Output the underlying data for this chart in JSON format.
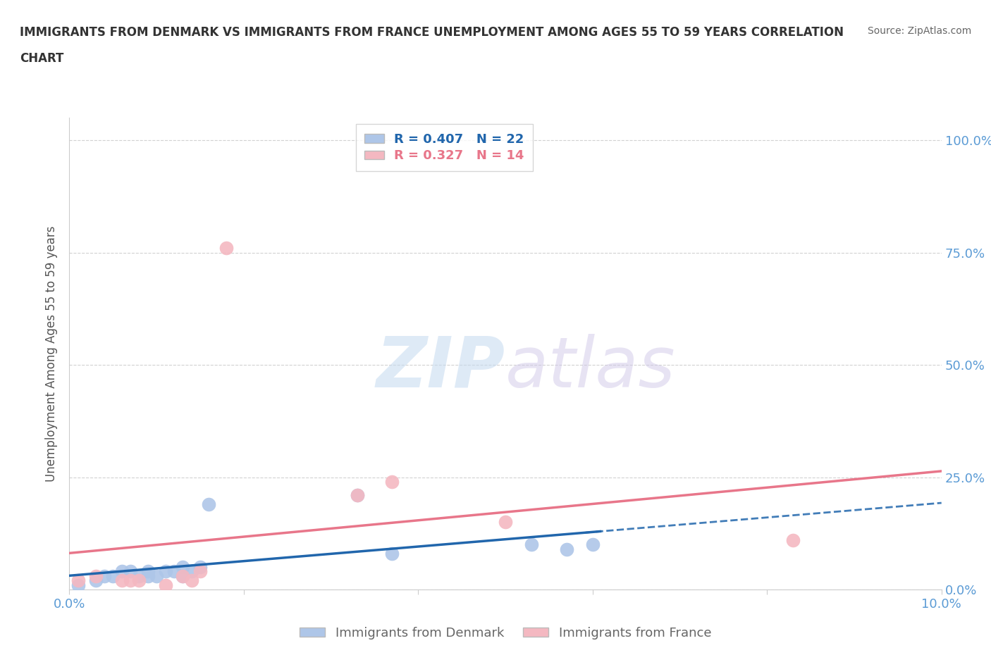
{
  "title_line1": "IMMIGRANTS FROM DENMARK VS IMMIGRANTS FROM FRANCE UNEMPLOYMENT AMONG AGES 55 TO 59 YEARS CORRELATION",
  "title_line2": "CHART",
  "source": "Source: ZipAtlas.com",
  "ylabel": "Unemployment Among Ages 55 to 59 years",
  "xlim": [
    0.0,
    0.1
  ],
  "ylim": [
    0.0,
    1.05
  ],
  "x_ticks": [
    0.0,
    0.02,
    0.04,
    0.06,
    0.08,
    0.1
  ],
  "y_ticks": [
    0.0,
    0.25,
    0.5,
    0.75,
    1.0
  ],
  "y_tick_labels": [
    "0.0%",
    "25.0%",
    "50.0%",
    "75.0%",
    "100.0%"
  ],
  "denmark_R": 0.407,
  "denmark_N": 22,
  "france_R": 0.327,
  "france_N": 14,
  "denmark_color": "#aec6e8",
  "france_color": "#f4b8c1",
  "denmark_line_color": "#2166ac",
  "france_line_color": "#e8768a",
  "watermark_zip": "ZIP",
  "watermark_atlas": "atlas",
  "denmark_points_x": [
    0.001,
    0.003,
    0.004,
    0.005,
    0.006,
    0.007,
    0.008,
    0.009,
    0.009,
    0.01,
    0.011,
    0.012,
    0.013,
    0.013,
    0.014,
    0.015,
    0.016,
    0.033,
    0.037,
    0.053,
    0.057,
    0.06
  ],
  "denmark_points_y": [
    0.01,
    0.02,
    0.03,
    0.03,
    0.04,
    0.04,
    0.03,
    0.03,
    0.04,
    0.03,
    0.04,
    0.04,
    0.05,
    0.03,
    0.04,
    0.05,
    0.19,
    0.21,
    0.08,
    0.1,
    0.09,
    0.1
  ],
  "france_points_x": [
    0.001,
    0.003,
    0.006,
    0.007,
    0.008,
    0.011,
    0.013,
    0.014,
    0.015,
    0.018,
    0.033,
    0.037,
    0.05,
    0.083
  ],
  "france_points_y": [
    0.02,
    0.03,
    0.02,
    0.02,
    0.02,
    0.01,
    0.03,
    0.02,
    0.04,
    0.76,
    0.21,
    0.24,
    0.15,
    0.11
  ],
  "background_color": "#ffffff",
  "grid_color": "#cccccc",
  "tick_color": "#5b9bd5",
  "axis_color": "#cccccc"
}
